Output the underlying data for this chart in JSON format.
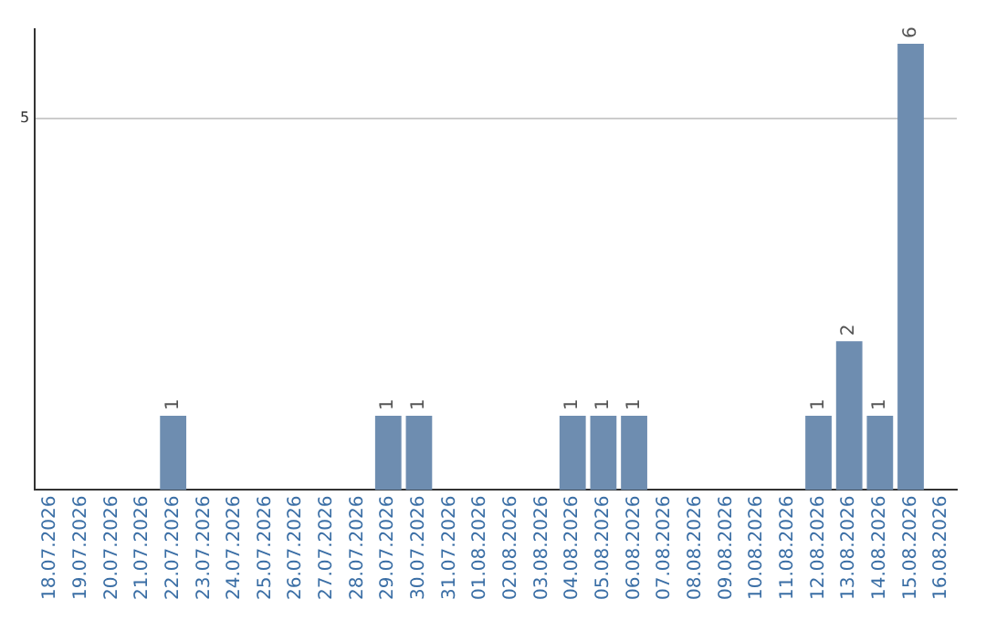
{
  "chart_data": {
    "type": "bar",
    "categories": [
      "18.07.2026",
      "19.07.2026",
      "20.07.2026",
      "21.07.2026",
      "22.07.2026",
      "23.07.2026",
      "24.07.2026",
      "25.07.2026",
      "26.07.2026",
      "27.07.2026",
      "28.07.2026",
      "29.07.2026",
      "30.07.2026",
      "31.07.2026",
      "01.08.2026",
      "02.08.2026",
      "03.08.2026",
      "04.08.2026",
      "05.08.2026",
      "06.08.2026",
      "07.08.2026",
      "08.08.2026",
      "09.08.2026",
      "10.08.2026",
      "11.08.2026",
      "12.08.2026",
      "13.08.2026",
      "14.08.2026",
      "15.08.2026",
      "16.08.2026"
    ],
    "values": [
      0,
      0,
      0,
      0,
      1,
      0,
      0,
      0,
      0,
      0,
      0,
      1,
      1,
      0,
      0,
      0,
      0,
      1,
      1,
      1,
      0,
      0,
      0,
      0,
      0,
      1,
      2,
      1,
      6,
      0
    ],
    "value_labels": [
      null,
      null,
      null,
      null,
      "1",
      null,
      null,
      null,
      null,
      null,
      null,
      "1",
      "1",
      null,
      null,
      null,
      null,
      "1",
      "1",
      "1",
      null,
      null,
      null,
      null,
      null,
      "1",
      "2",
      "1",
      "6",
      null
    ],
    "color": "#6e8db0",
    "ylim": [
      0,
      6.2
    ],
    "yticks": [
      5
    ],
    "grid": "y",
    "legend": false
  }
}
